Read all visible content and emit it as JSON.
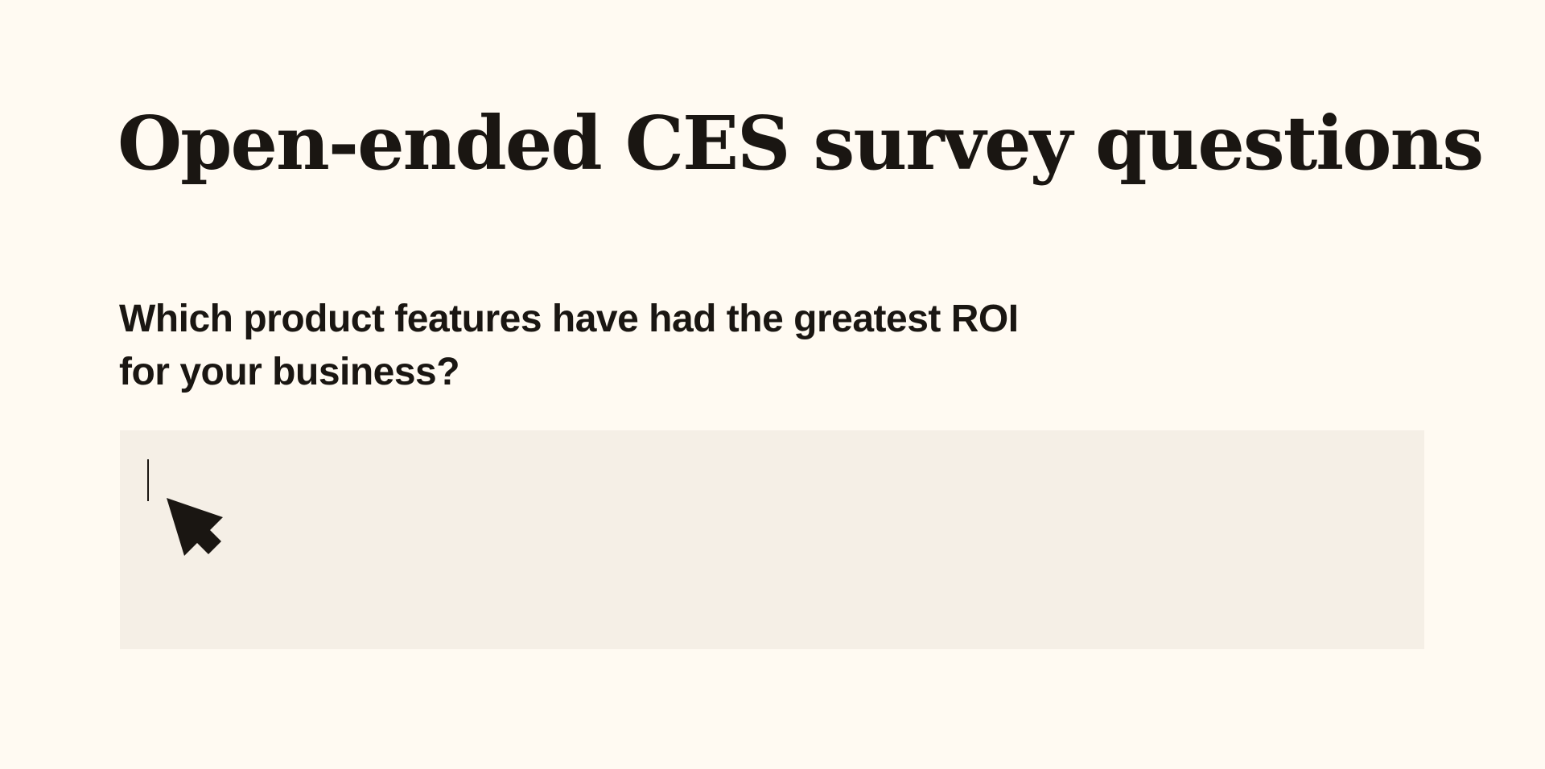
{
  "heading": {
    "title": "Open-ended CES survey questions"
  },
  "survey": {
    "question_line1": "Which product features have had the greatest ROI",
    "question_line2": "for your business?",
    "answer": {
      "value": "",
      "placeholder": ""
    }
  },
  "icons": {
    "cursor": "mouse-pointer-icon",
    "caret": "text-caret"
  },
  "colors": {
    "background": "#FFFAF2",
    "text": "#1A1612",
    "input_background": "#F5EFE6"
  }
}
